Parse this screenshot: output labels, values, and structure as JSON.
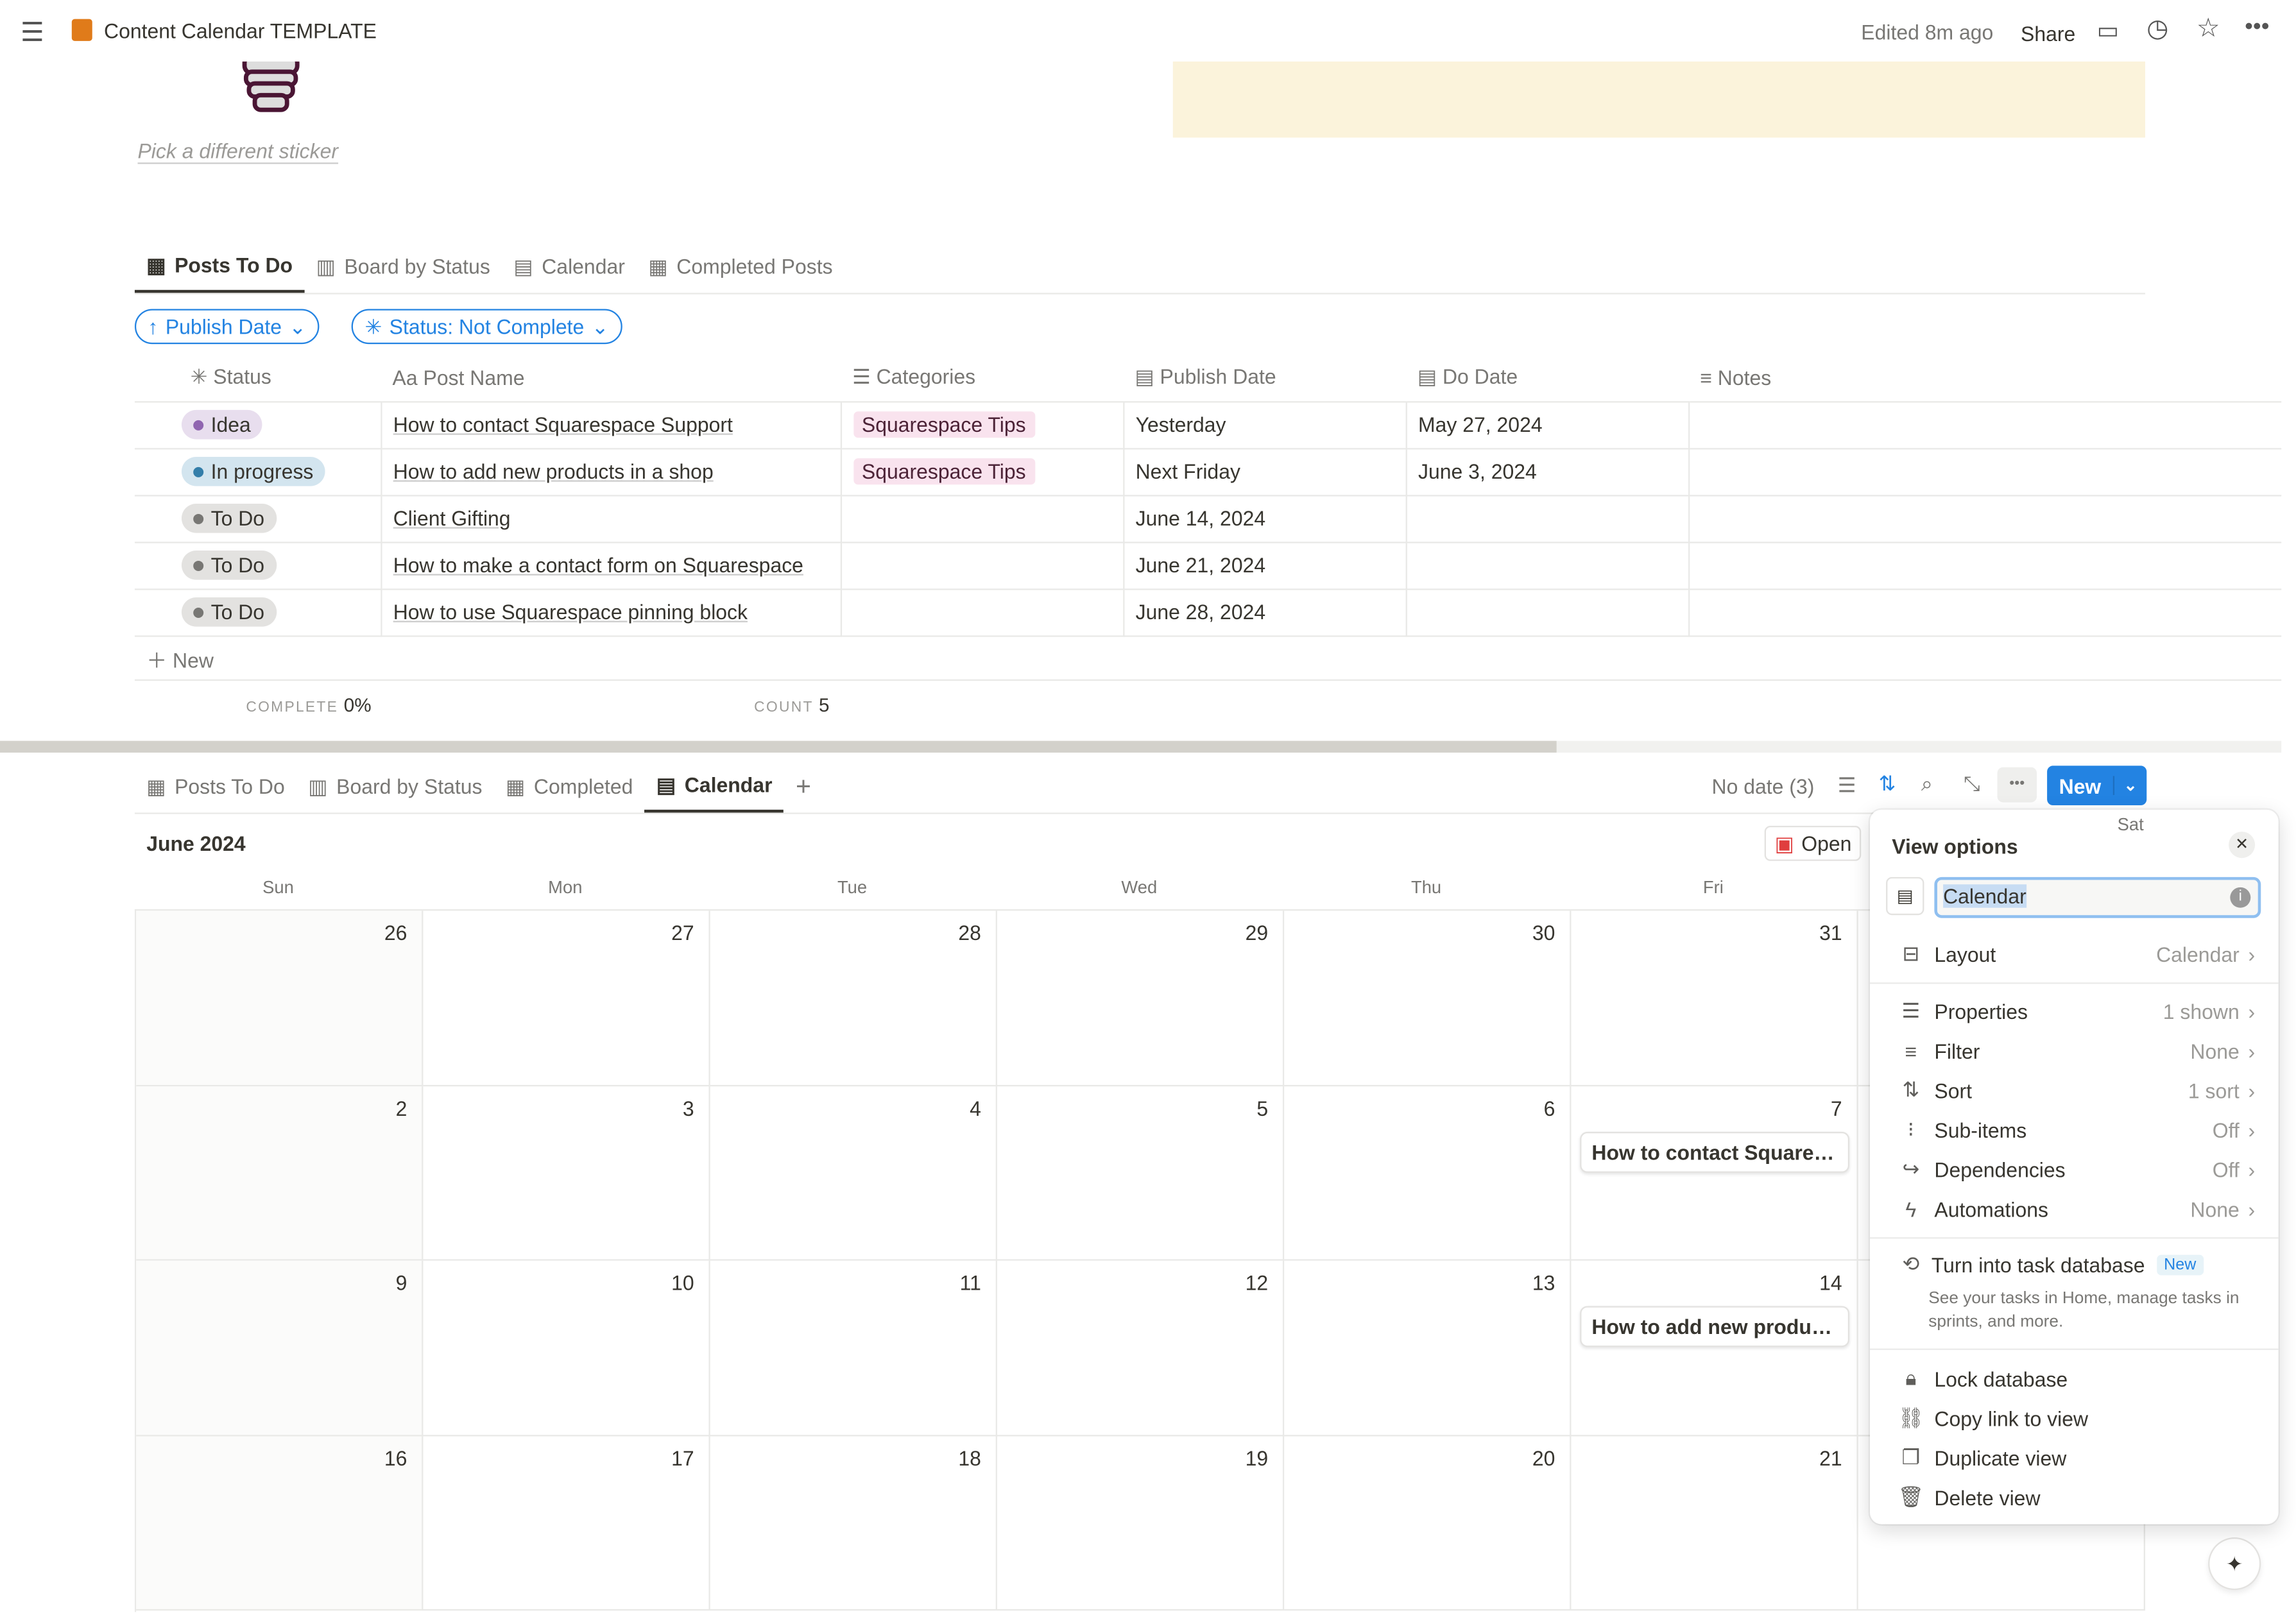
{
  "topbar": {
    "title": "Content Calendar TEMPLATE",
    "edited": "Edited 8m ago",
    "share": "Share"
  },
  "header": {
    "sticker_link": "Pick a different sticker"
  },
  "top_view": {
    "tabs": [
      {
        "label": "Posts To Do",
        "active": true
      },
      {
        "label": "Board by Status"
      },
      {
        "label": "Calendar"
      },
      {
        "label": "Completed Posts"
      }
    ],
    "filters": {
      "sort": "Publish Date",
      "status": "Status: Not Complete"
    },
    "columns": [
      "Status",
      "Post Name",
      "Categories",
      "Publish Date",
      "Do Date",
      "Notes"
    ],
    "rows": [
      {
        "status": "Idea",
        "status_color": "#9065b0",
        "status_bg": "#e8deee",
        "name": "How to contact Squarespace Support",
        "category": "Squarespace Tips",
        "publish": "Yesterday",
        "do": "May 27, 2024"
      },
      {
        "status": "In progress",
        "status_color": "#337ea9",
        "status_bg": "#d3e5ef",
        "name": "How to add new products in a shop",
        "category": "Squarespace Tips",
        "publish": "Next Friday",
        "do": "June 3, 2024"
      },
      {
        "status": "To Do",
        "status_color": "#787774",
        "status_bg": "#e3e2e0",
        "name": "Client Gifting",
        "category": "",
        "publish": "June 14, 2024",
        "do": ""
      },
      {
        "status": "To Do",
        "status_color": "#787774",
        "status_bg": "#e3e2e0",
        "name": "How to make a contact form on Squarespace",
        "category": "",
        "publish": "June 21, 2024",
        "do": ""
      },
      {
        "status": "To Do",
        "status_color": "#787774",
        "status_bg": "#e3e2e0",
        "name": "How to use Squarespace pinning block",
        "category": "",
        "publish": "June 28, 2024",
        "do": ""
      }
    ],
    "new_label": "New",
    "footer": {
      "complete_label": "COMPLETE",
      "complete_value": "0%",
      "count_label": "COUNT",
      "count_value": "5"
    }
  },
  "bottom_view": {
    "tabs": [
      {
        "label": "Posts To Do"
      },
      {
        "label": "Board by Status"
      },
      {
        "label": "Completed"
      },
      {
        "label": "Calendar",
        "active": true
      }
    ],
    "no_date": "No date (3)",
    "new_button": "New",
    "month": "June 2024",
    "open_button": "Open",
    "weekdays": [
      "Sun",
      "Mon",
      "Tue",
      "Wed",
      "Thu",
      "Fri",
      "Sat"
    ],
    "weeks": [
      [
        "26",
        "27",
        "28",
        "29",
        "30",
        "31",
        ""
      ],
      [
        "2",
        "3",
        "4",
        "5",
        "6",
        "7",
        ""
      ],
      [
        "9",
        "10",
        "11",
        "12",
        "13",
        "14",
        ""
      ],
      [
        "16",
        "17",
        "18",
        "19",
        "20",
        "21",
        ""
      ]
    ],
    "events": [
      {
        "week": 1,
        "day": 5,
        "title": "How to contact Squares..."
      },
      {
        "week": 2,
        "day": 5,
        "title": "How to add new product..."
      }
    ]
  },
  "view_options": {
    "title": "View options",
    "name_value": "Calendar",
    "items": [
      {
        "label": "Layout",
        "value": "Calendar",
        "icon": "layout-icon"
      },
      {
        "label": "Properties",
        "value": "1 shown",
        "icon": "list-icon"
      },
      {
        "label": "Filter",
        "value": "None",
        "icon": "filter-icon"
      },
      {
        "label": "Sort",
        "value": "1 sort",
        "icon": "sort-icon"
      },
      {
        "label": "Sub-items",
        "value": "Off",
        "icon": "sub-items-icon"
      },
      {
        "label": "Dependencies",
        "value": "Off",
        "icon": "dependencies-icon"
      },
      {
        "label": "Automations",
        "value": "None",
        "icon": "lightning-icon"
      }
    ],
    "task_db": {
      "label": "Turn into task database",
      "badge": "New",
      "desc": "See your tasks in Home, manage tasks in sprints, and more."
    },
    "actions": [
      {
        "label": "Lock database",
        "icon": "lock-icon"
      },
      {
        "label": "Copy link to view",
        "icon": "link-icon"
      },
      {
        "label": "Duplicate view",
        "icon": "duplicate-icon"
      },
      {
        "label": "Delete view",
        "icon": "trash-icon"
      }
    ],
    "accent": "#2383e2"
  }
}
